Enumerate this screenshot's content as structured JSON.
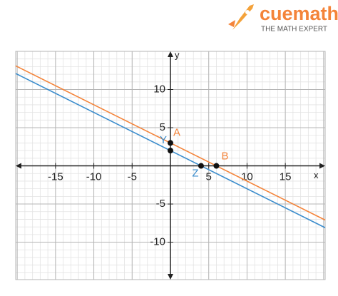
{
  "brand": {
    "name": "cuemath",
    "tagline": "THE MATH EXPERT"
  },
  "chart_data": {
    "type": "line",
    "xlabel": "x",
    "ylabel": "y",
    "xlim": [
      -20.2,
      20.2
    ],
    "ylim": [
      -14.9,
      15
    ],
    "xticks": [
      -15,
      -10,
      -5,
      5,
      10,
      15
    ],
    "yticks": [
      -10,
      -5,
      5,
      10
    ],
    "grid": true,
    "series": [
      {
        "color": "#f4843a",
        "x": [
          -20.2,
          20.2
        ],
        "values": [
          13.1,
          -7.1
        ]
      },
      {
        "color": "#3a8ccc",
        "x": [
          -20.2,
          20.2
        ],
        "values": [
          12.1,
          -8.1
        ]
      }
    ],
    "points": [
      {
        "label": "A",
        "x": 0,
        "y": 3,
        "color": "#f4843a"
      },
      {
        "label": "B",
        "x": 6,
        "y": 0,
        "color": "#f4843a"
      },
      {
        "label": "Y",
        "x": 0,
        "y": 2,
        "color": "#3a8ccc"
      },
      {
        "label": "Z",
        "x": 4,
        "y": 0,
        "color": "#3a8ccc"
      }
    ]
  }
}
